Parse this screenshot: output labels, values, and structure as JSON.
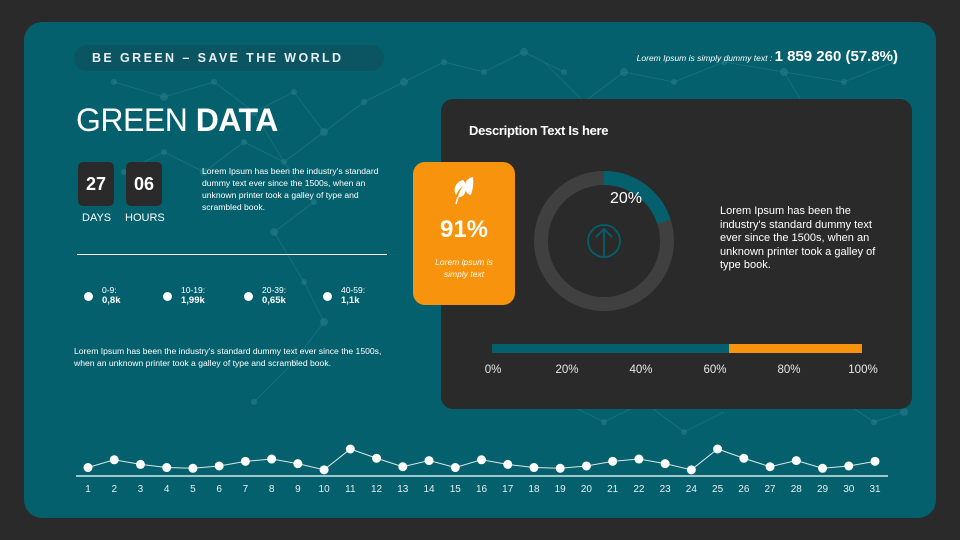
{
  "header": {
    "tagline": "BE GREEN – SAVE THE WORLD",
    "top_stat_label": "Lorem Ipsum is simply dummy text : ",
    "top_stat_value": "1 859 260 (57.8%)"
  },
  "title": {
    "light": "GREEN ",
    "bold": "DATA"
  },
  "countdown": {
    "days_value": "27",
    "days_label": "DAYS",
    "hours_value": "06",
    "hours_label": "HOURS"
  },
  "intro_text": "Lorem Ipsum has been the industry's standard dummy text ever since the 1500s, when an unknown printer took a galley of type and scrambled book.",
  "age_stats": [
    {
      "label": "0-9:",
      "value": "0,8k"
    },
    {
      "label": "10-19:",
      "value": "1,99k"
    },
    {
      "label": "20-39:",
      "value": "0,65k"
    },
    {
      "label": "40-59:",
      "value": "1,1k"
    }
  ],
  "bottom_text": "Lorem Ipsum has been the industry's standard dummy text ever since the 1500s, when an unknown printer took a galley of type and scrambled book.",
  "panel": {
    "title": "Description Text Is here",
    "highlight": {
      "icon": "leaf-icon",
      "value": "91%",
      "caption": "Lorem ipsum is simply text"
    },
    "donut": {
      "value": 20,
      "label": "20%",
      "icon": "arrow-up-circle-icon"
    },
    "description": "Lorem Ipsum has been the industry's standard dummy text ever since the 1500s, when an unknown printer took a galley of type book.",
    "progress": {
      "teal_pct": 64,
      "orange_pct": 36,
      "ticks": [
        "0%",
        "20%",
        "40%",
        "60%",
        "80%",
        "100%"
      ]
    }
  },
  "colors": {
    "teal": "#04606d",
    "orange": "#f7930d",
    "dark": "#2b2a2a",
    "ring": "#404040"
  },
  "chart_data": {
    "type": "line",
    "title": "",
    "xlabel": "",
    "ylabel": "",
    "x": [
      1,
      2,
      3,
      4,
      5,
      6,
      7,
      8,
      9,
      10,
      11,
      12,
      13,
      14,
      15,
      16,
      17,
      18,
      19,
      20,
      21,
      22,
      23,
      24,
      25,
      26,
      27,
      28,
      29,
      30,
      31
    ],
    "values": [
      11,
      21,
      15,
      11,
      10,
      13,
      19,
      22,
      16,
      8,
      35,
      23,
      12,
      20,
      11,
      21,
      15,
      11,
      10,
      13,
      19,
      22,
      16,
      8,
      35,
      23,
      12,
      20,
      10,
      13,
      19
    ],
    "ylim": [
      0,
      40
    ],
    "grid": false,
    "legend": null
  }
}
